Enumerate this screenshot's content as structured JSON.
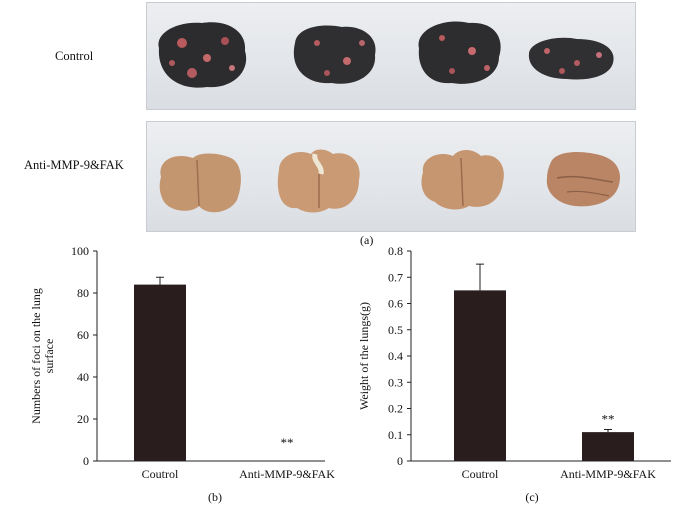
{
  "panel_a": {
    "label": "(a)",
    "rows": [
      {
        "label": "Control"
      },
      {
        "label": "Anti-MMP-9&FAK"
      }
    ]
  },
  "chart_data": [
    {
      "panel": "(b)",
      "type": "bar",
      "categories": [
        "Coutrol",
        "Anti-MMP-9&FAK"
      ],
      "values": [
        84,
        0
      ],
      "errors": [
        3.5,
        0
      ],
      "annotations": [
        "",
        "**"
      ],
      "ylabel": "Numbers of foci on the lung surface",
      "ylabel_lines": [
        "Numbers of foci on the lung",
        "surface"
      ],
      "ylim": [
        0,
        100
      ],
      "yticks": [
        0,
        20,
        40,
        60,
        80,
        100
      ],
      "ytick_labels": [
        "0",
        "20",
        "40",
        "60",
        "80",
        "100"
      ],
      "bar_color": "#2a1d1d"
    },
    {
      "panel": "(c)",
      "type": "bar",
      "categories": [
        "Coutrol",
        "Anti-MMP-9&FAK"
      ],
      "values": [
        0.65,
        0.11
      ],
      "errors": [
        0.1,
        0.01
      ],
      "annotations": [
        "",
        "**"
      ],
      "ylabel": "Weight of the lungs(g)",
      "ylabel_lines": [
        "Weight of the lungs(g)"
      ],
      "ylim": [
        0,
        0.8
      ],
      "yticks": [
        0,
        0.1,
        0.2,
        0.3,
        0.4,
        0.5,
        0.6,
        0.7,
        0.8
      ],
      "ytick_labels": [
        "0",
        "0.1",
        "0.2",
        "0.3",
        "0.4",
        "0.5",
        "0.6",
        "0.7",
        "0.8"
      ],
      "bar_color": "#2a1d1d"
    }
  ]
}
